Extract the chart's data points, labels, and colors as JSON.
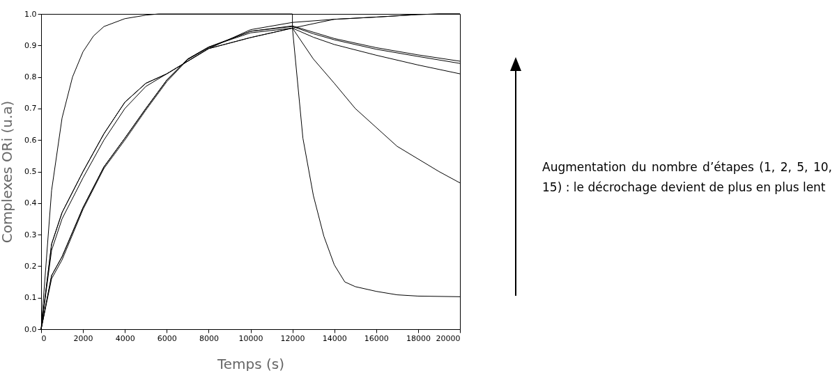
{
  "chart_data": {
    "type": "line",
    "xlabel": "Temps (s)",
    "ylabel": "Complexes ORi (u.a)",
    "annotations": [
      "Augmentation du nombre d’étapes (1, 2, 5, 10, 15) : le décrochage devient de plus en plus lent"
    ],
    "xlim": [
      0,
      20000
    ],
    "xticks": [
      0,
      2000,
      4000,
      6000,
      8000,
      10000,
      12000,
      14000,
      16000,
      18000,
      20000
    ],
    "ylim": [
      0,
      1
    ],
    "yticks": [
      {
        "value": 0,
        "label": "0.0"
      },
      {
        "value": 0.1,
        "label": "0.1"
      },
      {
        "value": 0.2,
        "label": "0.2"
      },
      {
        "value": 0.3,
        "label": "0.3"
      },
      {
        "value": 0.4,
        "label": "0.4"
      },
      {
        "value": 0.5,
        "label": "0.5"
      },
      {
        "value": 0.6,
        "label": "0.6"
      },
      {
        "value": 0.7,
        "label": "0.7"
      },
      {
        "value": 0.8,
        "label": "0.8"
      },
      {
        "value": 0.9,
        "label": "0.9"
      },
      {
        "value": 1,
        "label": "1.0"
      }
    ],
    "grid": false,
    "legend": false,
    "marker": "none",
    "line_style": "solid",
    "series": [
      {
        "color": "#000000",
        "x": [
          0,
          500,
          1000,
          1500,
          2000,
          2500,
          3000,
          4000,
          5000,
          5600,
          12000,
          12000,
          14000,
          16000,
          18000,
          19000,
          20000
        ],
        "values": [
          0,
          0.44,
          0.67,
          0.8,
          0.88,
          0.93,
          0.96,
          0.985,
          0.996,
          1,
          1,
          0.955,
          0.983,
          0.99,
          0.998,
          1,
          1
        ]
      },
      {
        "color": "#000000",
        "x": [
          0,
          500,
          1000,
          2000,
          3000,
          4000,
          5000,
          6000,
          8000,
          10000,
          12000,
          14000,
          16000,
          18000,
          19000,
          20000
        ],
        "values": [
          0,
          0.27,
          0.37,
          0.5,
          0.62,
          0.72,
          0.78,
          0.81,
          0.89,
          0.95,
          0.973,
          0.983,
          0.99,
          0.998,
          1,
          1
        ]
      },
      {
        "color": "#000000",
        "x": [
          0,
          500,
          1000,
          2000,
          3000,
          4000,
          5000,
          6000,
          8000,
          10000,
          12000,
          12500,
          13000,
          13500,
          14000,
          14500,
          15000,
          16000,
          17000,
          18000,
          20000
        ],
        "values": [
          0,
          0.27,
          0.37,
          0.5,
          0.62,
          0.72,
          0.78,
          0.81,
          0.89,
          0.925,
          0.955,
          0.606,
          0.424,
          0.295,
          0.204,
          0.15,
          0.135,
          0.12,
          0.109,
          0.105,
          0.103
        ]
      },
      {
        "color": "#000000",
        "x": [
          0,
          500,
          1000,
          2000,
          3000,
          4000,
          5000,
          6000,
          8000,
          10000,
          12000,
          13000,
          14000,
          15000,
          16000,
          17000,
          18000,
          19000,
          20000
        ],
        "values": [
          0,
          0.25,
          0.35,
          0.48,
          0.6,
          0.7,
          0.77,
          0.81,
          0.89,
          0.925,
          0.955,
          0.857,
          0.78,
          0.7,
          0.64,
          0.58,
          0.54,
          0.5,
          0.464
        ]
      },
      {
        "color": "#000000",
        "x": [
          0,
          500,
          1000,
          2000,
          3000,
          4000,
          5000,
          6000,
          7000,
          8000,
          10000,
          12000,
          13000,
          14000,
          16000,
          18000,
          20000
        ],
        "values": [
          0,
          0.17,
          0.23,
          0.386,
          0.515,
          0.606,
          0.7,
          0.79,
          0.857,
          0.895,
          0.94,
          0.955,
          0.926,
          0.903,
          0.869,
          0.838,
          0.81
        ]
      },
      {
        "color": "#000000",
        "x": [
          0,
          500,
          1000,
          2000,
          3000,
          4000,
          5000,
          6000,
          7000,
          8000,
          10000,
          12000,
          13000,
          14000,
          16000,
          18000,
          20000
        ],
        "values": [
          0,
          0.17,
          0.23,
          0.386,
          0.515,
          0.606,
          0.7,
          0.79,
          0.857,
          0.895,
          0.945,
          0.96,
          0.937,
          0.918,
          0.888,
          0.865,
          0.843
        ]
      },
      {
        "color": "#000000",
        "x": [
          0,
          500,
          1000,
          2000,
          3000,
          4000,
          5000,
          6000,
          7000,
          8000,
          10000,
          12000,
          14000,
          16000,
          18000,
          20000
        ],
        "values": [
          0,
          0.16,
          0.22,
          0.38,
          0.51,
          0.6,
          0.695,
          0.785,
          0.855,
          0.893,
          0.945,
          0.962,
          0.922,
          0.893,
          0.87,
          0.85
        ]
      }
    ]
  }
}
